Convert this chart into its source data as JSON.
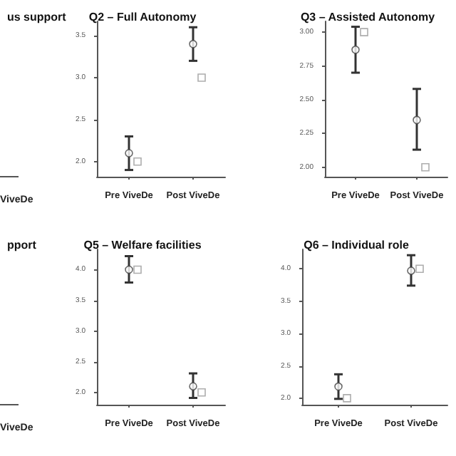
{
  "chart_data": [
    {
      "type": "other",
      "title": "us support",
      "annotations": [
        "ViveDe"
      ]
    },
    {
      "type": "scatter",
      "title": "Q2 – Full Autonomy",
      "categories": [
        "Pre ViveDe",
        "Post ViveDe"
      ],
      "ylim": [
        1.82,
        3.67
      ],
      "yticks": [
        {
          "value": 2,
          "label": "2.0"
        },
        {
          "value": 2.5,
          "label": "2.5"
        },
        {
          "value": 3,
          "label": "3.0"
        },
        {
          "value": 3.5,
          "label": "3.5"
        }
      ],
      "series": [
        {
          "marker": "circle",
          "color": "#444444",
          "values": [
            2.1,
            3.4
          ],
          "errors": [
            [
              1.9,
              2.3
            ],
            [
              3.2,
              3.6
            ]
          ]
        },
        {
          "marker": "square",
          "color": "#999999",
          "values": [
            2.0,
            3.0
          ]
        }
      ]
    },
    {
      "type": "scatter",
      "title": "Q3 – Assisted Autonomy",
      "categories": [
        "Pre ViveDe",
        "Post ViveDe"
      ],
      "ylim": [
        1.93,
        3.08
      ],
      "yticks": [
        {
          "value": 2,
          "label": "2.00"
        },
        {
          "value": 2.25,
          "label": "2.25"
        },
        {
          "value": 2.5,
          "label": "2.50"
        },
        {
          "value": 2.75,
          "label": "2.75"
        },
        {
          "value": 3,
          "label": "3.00"
        }
      ],
      "series": [
        {
          "marker": "circle",
          "color": "#444444",
          "values": [
            2.87,
            2.35
          ],
          "errors": [
            [
              2.7,
              3.04
            ],
            [
              2.13,
              2.58
            ]
          ]
        },
        {
          "marker": "square",
          "color": "#999999",
          "values": [
            3.0,
            2.0
          ]
        }
      ]
    },
    {
      "type": "other",
      "title": "pport",
      "annotations": [
        "ViveDe"
      ]
    },
    {
      "type": "scatter",
      "title": "Q5 – Welfare facilities",
      "categories": [
        "Pre ViveDe",
        "Post ViveDe"
      ],
      "ylim": [
        1.8,
        4.33
      ],
      "yticks": [
        {
          "value": 2,
          "label": "2.0"
        },
        {
          "value": 2.5,
          "label": "2.5"
        },
        {
          "value": 3,
          "label": "3.0"
        },
        {
          "value": 3.5,
          "label": "3.5"
        },
        {
          "value": 4,
          "label": "4.0"
        }
      ],
      "series": [
        {
          "marker": "circle",
          "color": "#444444",
          "values": [
            4.0,
            2.1
          ],
          "errors": [
            [
              3.79,
              4.22
            ],
            [
              1.91,
              2.31
            ]
          ]
        },
        {
          "marker": "square",
          "color": "#999999",
          "values": [
            4.0,
            2.0
          ]
        }
      ]
    },
    {
      "type": "scatter",
      "title": "Q6 – Individual role",
      "categories": [
        "Pre ViveDe",
        "Post ViveDe"
      ],
      "ylim": [
        1.9,
        4.3
      ],
      "yticks": [
        {
          "value": 2,
          "label": "2.0"
        },
        {
          "value": 2.5,
          "label": "2.5"
        },
        {
          "value": 3,
          "label": "3.0"
        },
        {
          "value": 3.5,
          "label": "3.5"
        },
        {
          "value": 4,
          "label": "4.0"
        }
      ],
      "series": [
        {
          "marker": "circle",
          "color": "#444444",
          "values": [
            2.18,
            3.97
          ],
          "errors": [
            [
              1.99,
              2.37
            ],
            [
              3.74,
              4.21
            ]
          ]
        },
        {
          "marker": "square",
          "color": "#999999",
          "values": [
            2.0,
            4.0
          ]
        }
      ]
    }
  ]
}
